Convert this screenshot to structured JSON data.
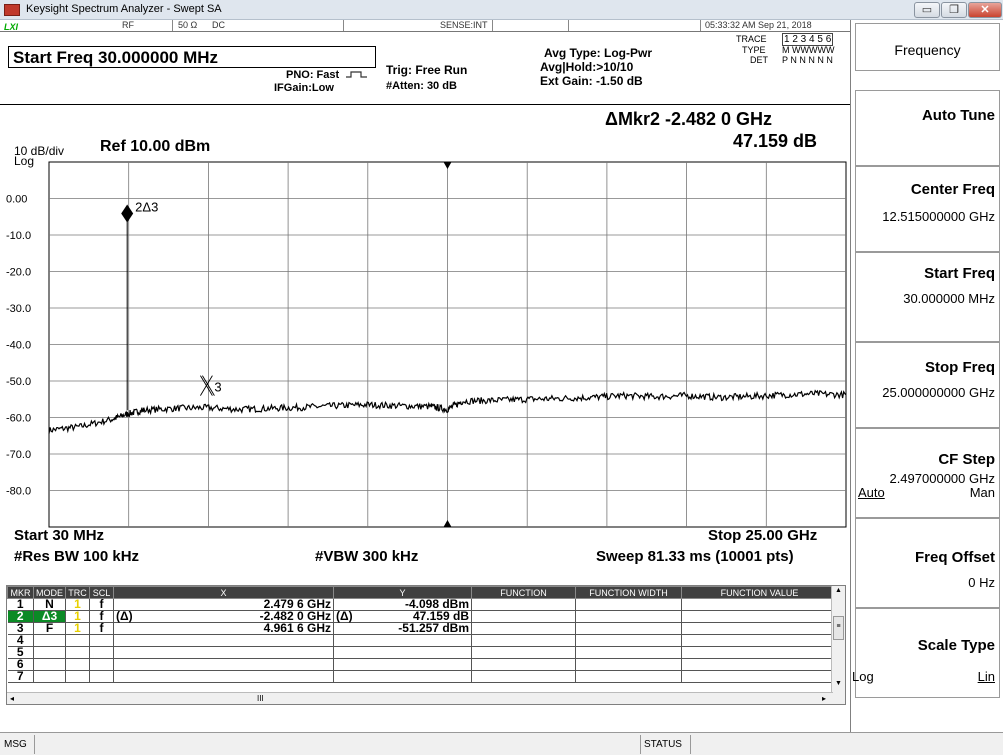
{
  "window": {
    "title": "Keysight Spectrum Analyzer - Swept SA",
    "min_glyph": "▭",
    "max_glyph": "❐",
    "close_glyph": "✕"
  },
  "topstrip": {
    "lxi": "LXI",
    "rf": "RF",
    "impedance": "50 Ω",
    "coupling": "DC",
    "sense": "SENSE:INT",
    "datetime": "05:33:32 AM Sep 21, 2018"
  },
  "header": {
    "start_freq": "Start Freq 30.000000 MHz",
    "pno": "PNO: Fast",
    "ifgain": "IFGain:Low",
    "trig": "Trig: Free Run",
    "atten": "#Atten: 30 dB",
    "avg_type": "Avg Type: Log-Pwr",
    "avg_hold": "Avg|Hold:>10/10",
    "ext_gain": "Ext Gain: -1.50 dB",
    "trace_label": "TRACE",
    "trace_nums": "1 2 3 4 5 6",
    "type_label": "TYPE",
    "type_vals": "M WWWWW",
    "det_label": "DET",
    "det_vals": "P N N N N N",
    "delta_marker": "ΔMkr2 -2.482 0 GHz",
    "delta_value": "47.159 dB",
    "scale": "10 dB/div",
    "ref": "Ref 10.00 dBm",
    "log": "Log"
  },
  "plot": {
    "y_ticks": [
      "0.00",
      "-10.0",
      "-20.0",
      "-30.0",
      "-40.0",
      "-50.0",
      "-60.0",
      "-70.0",
      "-80.0"
    ],
    "marker_2_label": "2Δ3",
    "marker_3_label": "3",
    "start": "Start 30 MHz",
    "stop": "Stop 25.00 GHz",
    "res_bw": "#Res BW 100 kHz",
    "vbw": "#VBW 300 kHz",
    "sweep": "Sweep  81.33 ms (10001 pts)"
  },
  "chart_data": {
    "type": "line",
    "xlabel": "",
    "ylabel": "",
    "x_unit": "GHz",
    "y_unit": "dBm",
    "xlim": [
      0.03,
      25.0
    ],
    "ylim": [
      -90,
      10
    ],
    "grid": true,
    "series": [
      {
        "x": [
          0.03,
          1.0,
          2.0,
          2.5,
          3.0,
          4.0,
          4.96,
          6.0,
          7.0,
          8.0,
          9.0,
          10.0,
          11.0,
          12.0,
          12.5,
          13.0,
          14.0,
          15.0,
          16.0,
          17.0,
          18.0,
          19.0,
          20.0,
          21.0,
          22.0,
          23.0,
          24.0,
          25.0
        ],
        "values": [
          -63.5,
          -62.5,
          -60.5,
          -59.0,
          -58.0,
          -57.5,
          -57.3,
          -57.8,
          -57.5,
          -57.2,
          -56.8,
          -56.5,
          -56.8,
          -57.0,
          -57.8,
          -55.5,
          -55.3,
          -55.0,
          -54.8,
          -54.5,
          -54.0,
          -54.3,
          -54.0,
          -54.5,
          -54.2,
          -53.8,
          -53.5,
          -53.8
        ]
      }
    ],
    "markers": [
      {
        "n": "1",
        "x_ghz": 2.4796,
        "y_dbm": -4.098
      },
      {
        "n": "3",
        "x_ghz": 4.9616,
        "y_dbm": -51.257
      }
    ]
  },
  "marker_table": {
    "headers": [
      "MKR",
      "MODE",
      "TRC",
      "SCL",
      "X",
      "Y",
      "FUNCTION",
      "FUNCTION WIDTH",
      "FUNCTION VALUE"
    ],
    "rows": [
      {
        "mkr": "1",
        "mode": "N",
        "trc": "1",
        "scl": "f",
        "delta_x": "",
        "x": "2.479 6 GHz",
        "delta_y": "",
        "y": "-4.098 dBm"
      },
      {
        "mkr": "2",
        "mode": "Δ3",
        "trc": "1",
        "scl": "f",
        "delta_x": "(Δ)",
        "x": "-2.482 0 GHz",
        "delta_y": "(Δ)",
        "y": "47.159 dB"
      },
      {
        "mkr": "3",
        "mode": "F",
        "trc": "1",
        "scl": "f",
        "delta_x": "",
        "x": "4.961 6 GHz",
        "delta_y": "",
        "y": "-51.257 dBm"
      },
      {
        "mkr": "4",
        "mode": "",
        "trc": "",
        "scl": "",
        "delta_x": "",
        "x": "",
        "delta_y": "",
        "y": ""
      },
      {
        "mkr": "5",
        "mode": "",
        "trc": "",
        "scl": "",
        "delta_x": "",
        "x": "",
        "delta_y": "",
        "y": ""
      },
      {
        "mkr": "6",
        "mode": "",
        "trc": "",
        "scl": "",
        "delta_x": "",
        "x": "",
        "delta_y": "",
        "y": ""
      },
      {
        "mkr": "7",
        "mode": "",
        "trc": "",
        "scl": "",
        "delta_x": "",
        "x": "",
        "delta_y": "",
        "y": ""
      }
    ],
    "scroll_glyph": "III"
  },
  "softkeys": {
    "menu": "Frequency",
    "auto_tune": "Auto Tune",
    "center_freq": "Center Freq",
    "center_freq_val": "12.515000000 GHz",
    "start_freq": "Start Freq",
    "start_freq_val": "30.000000 MHz",
    "stop_freq": "Stop Freq",
    "stop_freq_val": "25.000000000 GHz",
    "cf_step": "CF Step",
    "cf_step_val": "2.497000000 GHz",
    "cf_step_auto": "Auto",
    "cf_step_man": "Man",
    "freq_offset": "Freq Offset",
    "freq_offset_val": "0 Hz",
    "scale_type": "Scale Type",
    "scale_log": "Log",
    "scale_lin": "Lin"
  },
  "statusbar": {
    "msg": "MSG",
    "status": "STATUS"
  },
  "colors": {
    "trace": "#000000",
    "marker_selected": "#0b8a25",
    "trace_num": "#e8d000",
    "header_bg": "#404040"
  }
}
